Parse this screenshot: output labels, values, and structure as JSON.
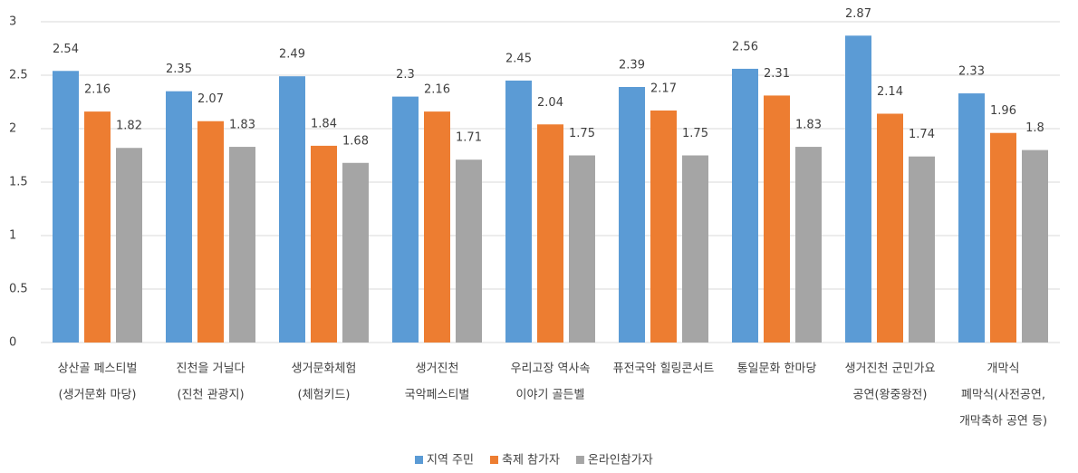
{
  "chart_data": {
    "type": "bar",
    "categories": [
      [
        "상산골 페스티벌",
        "(생거문화 마당)"
      ],
      [
        "진천을 거닐다",
        "(진천 관광지)"
      ],
      [
        "생거문화체험",
        "(체험키드)"
      ],
      [
        "생거진천",
        "국악페스티벌"
      ],
      [
        "우리고장 역사속",
        "이야기 골든벨"
      ],
      [
        "퓨전국악 힐링콘서트"
      ],
      [
        "통일문화 한마당"
      ],
      [
        "생거진천 군민가요",
        "공연(왕중왕전)"
      ],
      [
        "개막식",
        "폐막식(사전공연,",
        "개막축하 공연 등)"
      ]
    ],
    "series": [
      {
        "name": "지역 주민",
        "color": "#5b9bd5",
        "values": [
          2.54,
          2.35,
          2.49,
          2.3,
          2.45,
          2.39,
          2.56,
          2.87,
          2.33
        ]
      },
      {
        "name": "축제 참가자",
        "color": "#ed7d31",
        "values": [
          2.16,
          2.07,
          1.84,
          2.16,
          2.04,
          2.17,
          2.31,
          2.14,
          1.96
        ]
      },
      {
        "name": "온라인참가자",
        "color": "#a5a5a5",
        "values": [
          1.82,
          1.83,
          1.68,
          1.71,
          1.75,
          1.75,
          1.83,
          1.74,
          1.8
        ]
      }
    ],
    "ylim": [
      0,
      3
    ],
    "yticks": [
      0,
      0.5,
      1,
      1.5,
      2,
      2.5,
      3
    ],
    "grid": true,
    "legend": "bottom"
  }
}
